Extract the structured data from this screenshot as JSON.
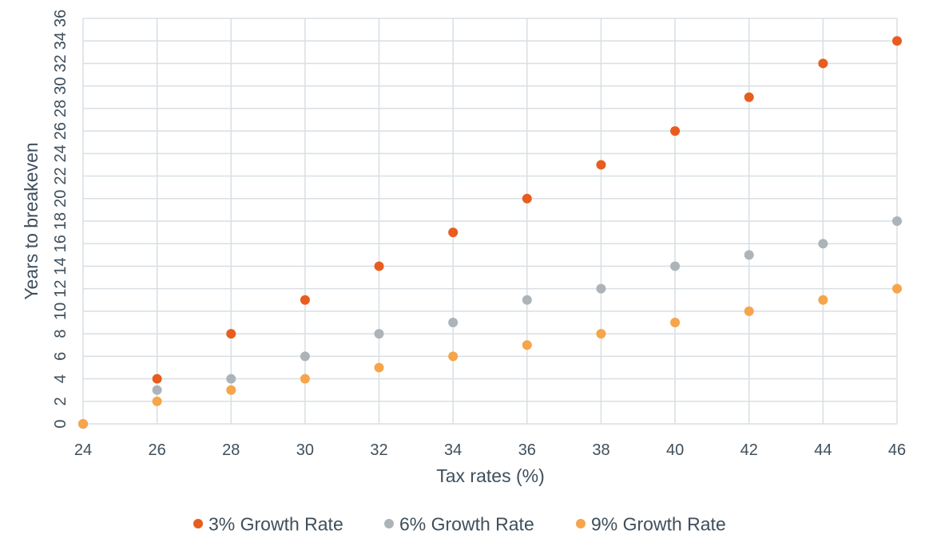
{
  "chart_data": {
    "type": "scatter",
    "xlabel": "Tax rates (%)",
    "ylabel": "Years to breakeven",
    "xlim": [
      24,
      46
    ],
    "ylim": [
      0,
      36
    ],
    "x_ticks": [
      24,
      26,
      28,
      30,
      32,
      34,
      36,
      38,
      40,
      42,
      44,
      46
    ],
    "y_ticks": [
      0,
      2,
      4,
      6,
      8,
      10,
      12,
      14,
      16,
      18,
      20,
      22,
      24,
      26,
      28,
      30,
      32,
      34,
      36
    ],
    "grid": true,
    "legend_position": "bottom",
    "x": [
      24,
      26,
      28,
      30,
      32,
      34,
      36,
      38,
      40,
      42,
      44,
      46
    ],
    "series": [
      {
        "name": "3% Growth Rate",
        "color": "#e85d1e",
        "values": [
          0,
          4,
          8,
          11,
          14,
          17,
          20,
          23,
          26,
          29,
          32,
          34
        ]
      },
      {
        "name": "6% Growth Rate",
        "color": "#adb4b9",
        "values": [
          0,
          3,
          4,
          6,
          8,
          9,
          11,
          12,
          14,
          15,
          16,
          18
        ]
      },
      {
        "name": "9% Growth Rate",
        "color": "#f6a54a",
        "values": [
          0,
          2,
          3,
          4,
          5,
          6,
          7,
          8,
          9,
          10,
          11,
          12
        ]
      }
    ]
  }
}
